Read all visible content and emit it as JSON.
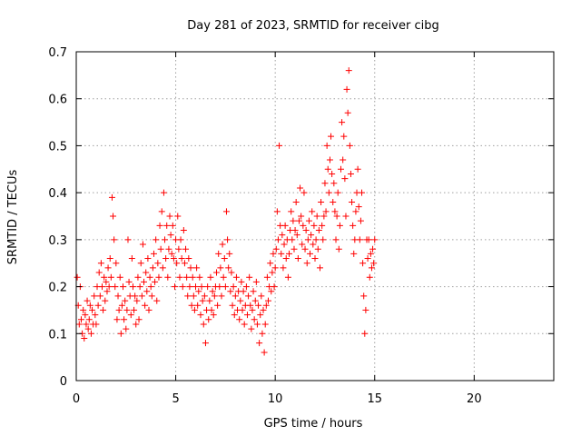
{
  "chart_data": {
    "type": "scatter",
    "title": "Day 281 of 2023, SRMTID for receiver cibg",
    "xlabel": "GPS time / hours",
    "ylabel": "SRMTID / TECUs",
    "xlim": [
      0,
      24
    ],
    "ylim": [
      0,
      0.7
    ],
    "xticks": [
      0,
      5,
      10,
      15,
      20
    ],
    "xtick_labels": [
      "0",
      "5",
      "10",
      "15",
      "20"
    ],
    "yticks": [
      0,
      0.1,
      0.2,
      0.3,
      0.4,
      0.5,
      0.6,
      0.7
    ],
    "ytick_labels": [
      "0",
      "0.1",
      "0.2",
      "0.3",
      "0.4",
      "0.5",
      "0.6",
      "0.7"
    ],
    "grid": true,
    "marker": "plus",
    "color": "#ff0000",
    "series": [
      {
        "name": "SRMTID",
        "points": [
          [
            0.05,
            0.22
          ],
          [
            0.1,
            0.16
          ],
          [
            0.15,
            0.12
          ],
          [
            0.2,
            0.2
          ],
          [
            0.25,
            0.13
          ],
          [
            0.3,
            0.1
          ],
          [
            0.35,
            0.15
          ],
          [
            0.4,
            0.09
          ],
          [
            0.45,
            0.14
          ],
          [
            0.5,
            0.12
          ],
          [
            0.55,
            0.17
          ],
          [
            0.6,
            0.11
          ],
          [
            0.65,
            0.13
          ],
          [
            0.7,
            0.16
          ],
          [
            0.75,
            0.1
          ],
          [
            0.8,
            0.15
          ],
          [
            0.85,
            0.12
          ],
          [
            0.9,
            0.18
          ],
          [
            0.95,
            0.14
          ],
          [
            1.0,
            0.12
          ],
          [
            1.05,
            0.2
          ],
          [
            1.1,
            0.16
          ],
          [
            1.15,
            0.23
          ],
          [
            1.2,
            0.18
          ],
          [
            1.25,
            0.25
          ],
          [
            1.3,
            0.2
          ],
          [
            1.35,
            0.15
          ],
          [
            1.4,
            0.22
          ],
          [
            1.45,
            0.17
          ],
          [
            1.5,
            0.21
          ],
          [
            1.55,
            0.19
          ],
          [
            1.6,
            0.24
          ],
          [
            1.65,
            0.2
          ],
          [
            1.7,
            0.26
          ],
          [
            1.75,
            0.22
          ],
          [
            1.8,
            0.39
          ],
          [
            1.85,
            0.35
          ],
          [
            1.9,
            0.3
          ],
          [
            1.95,
            0.2
          ],
          [
            2.0,
            0.25
          ],
          [
            2.05,
            0.13
          ],
          [
            2.1,
            0.18
          ],
          [
            2.15,
            0.15
          ],
          [
            2.2,
            0.22
          ],
          [
            2.25,
            0.1
          ],
          [
            2.3,
            0.16
          ],
          [
            2.35,
            0.2
          ],
          [
            2.4,
            0.13
          ],
          [
            2.45,
            0.17
          ],
          [
            2.5,
            0.11
          ],
          [
            2.55,
            0.15
          ],
          [
            2.6,
            0.3
          ],
          [
            2.65,
            0.21
          ],
          [
            2.7,
            0.18
          ],
          [
            2.75,
            0.14
          ],
          [
            2.8,
            0.26
          ],
          [
            2.85,
            0.2
          ],
          [
            2.9,
            0.15
          ],
          [
            2.95,
            0.18
          ],
          [
            3.0,
            0.12
          ],
          [
            3.05,
            0.17
          ],
          [
            3.1,
            0.22
          ],
          [
            3.15,
            0.13
          ],
          [
            3.2,
            0.2
          ],
          [
            3.25,
            0.25
          ],
          [
            3.3,
            0.18
          ],
          [
            3.35,
            0.29
          ],
          [
            3.4,
            0.21
          ],
          [
            3.45,
            0.16
          ],
          [
            3.5,
            0.23
          ],
          [
            3.55,
            0.19
          ],
          [
            3.6,
            0.26
          ],
          [
            3.65,
            0.15
          ],
          [
            3.7,
            0.22
          ],
          [
            3.75,
            0.2
          ],
          [
            3.8,
            0.18
          ],
          [
            3.85,
            0.24
          ],
          [
            3.9,
            0.27
          ],
          [
            3.95,
            0.21
          ],
          [
            4.0,
            0.3
          ],
          [
            4.05,
            0.17
          ],
          [
            4.1,
            0.25
          ],
          [
            4.15,
            0.22
          ],
          [
            4.2,
            0.33
          ],
          [
            4.25,
            0.28
          ],
          [
            4.3,
            0.36
          ],
          [
            4.35,
            0.24
          ],
          [
            4.4,
            0.4
          ],
          [
            4.45,
            0.3
          ],
          [
            4.5,
            0.26
          ],
          [
            4.55,
            0.33
          ],
          [
            4.6,
            0.22
          ],
          [
            4.65,
            0.28
          ],
          [
            4.7,
            0.35
          ],
          [
            4.75,
            0.31
          ],
          [
            4.8,
            0.27
          ],
          [
            4.85,
            0.33
          ],
          [
            4.9,
            0.26
          ],
          [
            4.95,
            0.2
          ],
          [
            5.0,
            0.3
          ],
          [
            5.05,
            0.25
          ],
          [
            5.1,
            0.35
          ],
          [
            5.15,
            0.28
          ],
          [
            5.2,
            0.22
          ],
          [
            5.25,
            0.3
          ],
          [
            5.3,
            0.26
          ],
          [
            5.35,
            0.2
          ],
          [
            5.4,
            0.32
          ],
          [
            5.45,
            0.25
          ],
          [
            5.5,
            0.28
          ],
          [
            5.55,
            0.22
          ],
          [
            5.6,
            0.18
          ],
          [
            5.65,
            0.26
          ],
          [
            5.7,
            0.2
          ],
          [
            5.75,
            0.24
          ],
          [
            5.8,
            0.16
          ],
          [
            5.85,
            0.22
          ],
          [
            5.9,
            0.18
          ],
          [
            5.95,
            0.15
          ],
          [
            6.0,
            0.2
          ],
          [
            6.05,
            0.24
          ],
          [
            6.1,
            0.16
          ],
          [
            6.15,
            0.19
          ],
          [
            6.2,
            0.22
          ],
          [
            6.25,
            0.14
          ],
          [
            6.3,
            0.2
          ],
          [
            6.35,
            0.17
          ],
          [
            6.4,
            0.12
          ],
          [
            6.45,
            0.18
          ],
          [
            6.5,
            0.08
          ],
          [
            6.55,
            0.15
          ],
          [
            6.6,
            0.2
          ],
          [
            6.65,
            0.13
          ],
          [
            6.7,
            0.17
          ],
          [
            6.75,
            0.22
          ],
          [
            6.8,
            0.15
          ],
          [
            6.85,
            0.19
          ],
          [
            6.9,
            0.14
          ],
          [
            6.95,
            0.18
          ],
          [
            7.0,
            0.2
          ],
          [
            7.05,
            0.23
          ],
          [
            7.1,
            0.16
          ],
          [
            7.15,
            0.27
          ],
          [
            7.2,
            0.2
          ],
          [
            7.25,
            0.24
          ],
          [
            7.3,
            0.18
          ],
          [
            7.35,
            0.29
          ],
          [
            7.4,
            0.22
          ],
          [
            7.45,
            0.26
          ],
          [
            7.5,
            0.2
          ],
          [
            7.55,
            0.36
          ],
          [
            7.6,
            0.3
          ],
          [
            7.65,
            0.24
          ],
          [
            7.7,
            0.27
          ],
          [
            7.75,
            0.19
          ],
          [
            7.8,
            0.23
          ],
          [
            7.85,
            0.16
          ],
          [
            7.9,
            0.2
          ],
          [
            7.95,
            0.14
          ],
          [
            8.0,
            0.18
          ],
          [
            8.05,
            0.22
          ],
          [
            8.1,
            0.15
          ],
          [
            8.15,
            0.19
          ],
          [
            8.2,
            0.13
          ],
          [
            8.25,
            0.17
          ],
          [
            8.3,
            0.21
          ],
          [
            8.35,
            0.15
          ],
          [
            8.4,
            0.19
          ],
          [
            8.45,
            0.12
          ],
          [
            8.5,
            0.16
          ],
          [
            8.55,
            0.2
          ],
          [
            8.6,
            0.14
          ],
          [
            8.65,
            0.18
          ],
          [
            8.7,
            0.22
          ],
          [
            8.75,
            0.16
          ],
          [
            8.8,
            0.11
          ],
          [
            8.85,
            0.15
          ],
          [
            8.9,
            0.19
          ],
          [
            8.95,
            0.13
          ],
          [
            9.0,
            0.17
          ],
          [
            9.05,
            0.21
          ],
          [
            9.1,
            0.12
          ],
          [
            9.15,
            0.16
          ],
          [
            9.2,
            0.08
          ],
          [
            9.25,
            0.14
          ],
          [
            9.3,
            0.18
          ],
          [
            9.35,
            0.1
          ],
          [
            9.4,
            0.15
          ],
          [
            9.45,
            0.06
          ],
          [
            9.5,
            0.12
          ],
          [
            9.55,
            0.16
          ],
          [
            9.6,
            0.22
          ],
          [
            9.65,
            0.17
          ],
          [
            9.7,
            0.2
          ],
          [
            9.75,
            0.25
          ],
          [
            9.8,
            0.19
          ],
          [
            9.85,
            0.23
          ],
          [
            9.9,
            0.27
          ],
          [
            9.95,
            0.2
          ],
          [
            10.0,
            0.24
          ],
          [
            10.05,
            0.28
          ],
          [
            10.1,
            0.36
          ],
          [
            10.15,
            0.3
          ],
          [
            10.2,
            0.5
          ],
          [
            10.25,
            0.33
          ],
          [
            10.3,
            0.27
          ],
          [
            10.35,
            0.31
          ],
          [
            10.4,
            0.24
          ],
          [
            10.45,
            0.29
          ],
          [
            10.5,
            0.33
          ],
          [
            10.55,
            0.26
          ],
          [
            10.6,
            0.3
          ],
          [
            10.65,
            0.22
          ],
          [
            10.7,
            0.27
          ],
          [
            10.75,
            0.32
          ],
          [
            10.8,
            0.36
          ],
          [
            10.85,
            0.3
          ],
          [
            10.9,
            0.34
          ],
          [
            10.95,
            0.28
          ],
          [
            11.0,
            0.32
          ],
          [
            11.05,
            0.38
          ],
          [
            11.1,
            0.31
          ],
          [
            11.15,
            0.26
          ],
          [
            11.2,
            0.34
          ],
          [
            11.25,
            0.41
          ],
          [
            11.3,
            0.35
          ],
          [
            11.35,
            0.29
          ],
          [
            11.4,
            0.33
          ],
          [
            11.45,
            0.4
          ],
          [
            11.5,
            0.28
          ],
          [
            11.55,
            0.32
          ],
          [
            11.6,
            0.25
          ],
          [
            11.65,
            0.3
          ],
          [
            11.7,
            0.34
          ],
          [
            11.75,
            0.27
          ],
          [
            11.8,
            0.31
          ],
          [
            11.85,
            0.36
          ],
          [
            11.9,
            0.29
          ],
          [
            11.95,
            0.33
          ],
          [
            12.0,
            0.26
          ],
          [
            12.05,
            0.3
          ],
          [
            12.1,
            0.35
          ],
          [
            12.15,
            0.28
          ],
          [
            12.2,
            0.32
          ],
          [
            12.25,
            0.24
          ],
          [
            12.3,
            0.38
          ],
          [
            12.35,
            0.33
          ],
          [
            12.4,
            0.3
          ],
          [
            12.45,
            0.35
          ],
          [
            12.5,
            0.42
          ],
          [
            12.55,
            0.36
          ],
          [
            12.6,
            0.5
          ],
          [
            12.65,
            0.45
          ],
          [
            12.7,
            0.4
          ],
          [
            12.75,
            0.47
          ],
          [
            12.8,
            0.52
          ],
          [
            12.85,
            0.44
          ],
          [
            12.9,
            0.38
          ],
          [
            12.95,
            0.42
          ],
          [
            13.0,
            0.36
          ],
          [
            13.05,
            0.3
          ],
          [
            13.1,
            0.35
          ],
          [
            13.15,
            0.4
          ],
          [
            13.2,
            0.28
          ],
          [
            13.25,
            0.33
          ],
          [
            13.3,
            0.45
          ],
          [
            13.35,
            0.55
          ],
          [
            13.4,
            0.47
          ],
          [
            13.45,
            0.52
          ],
          [
            13.5,
            0.43
          ],
          [
            13.55,
            0.35
          ],
          [
            13.6,
            0.62
          ],
          [
            13.65,
            0.57
          ],
          [
            13.7,
            0.66
          ],
          [
            13.75,
            0.5
          ],
          [
            13.8,
            0.44
          ],
          [
            13.85,
            0.38
          ],
          [
            13.9,
            0.33
          ],
          [
            13.95,
            0.27
          ],
          [
            14.0,
            0.3
          ],
          [
            14.05,
            0.36
          ],
          [
            14.1,
            0.4
          ],
          [
            14.15,
            0.45
          ],
          [
            14.2,
            0.37
          ],
          [
            14.25,
            0.3
          ],
          [
            14.3,
            0.34
          ],
          [
            14.35,
            0.4
          ],
          [
            14.4,
            0.25
          ],
          [
            14.45,
            0.18
          ],
          [
            14.5,
            0.1
          ],
          [
            14.55,
            0.15
          ],
          [
            14.6,
            0.3
          ],
          [
            14.65,
            0.26
          ],
          [
            14.7,
            0.3
          ],
          [
            14.75,
            0.22
          ],
          [
            14.8,
            0.27
          ],
          [
            14.85,
            0.24
          ],
          [
            14.9,
            0.28
          ],
          [
            14.95,
            0.25
          ],
          [
            15.0,
            0.3
          ]
        ]
      }
    ]
  }
}
